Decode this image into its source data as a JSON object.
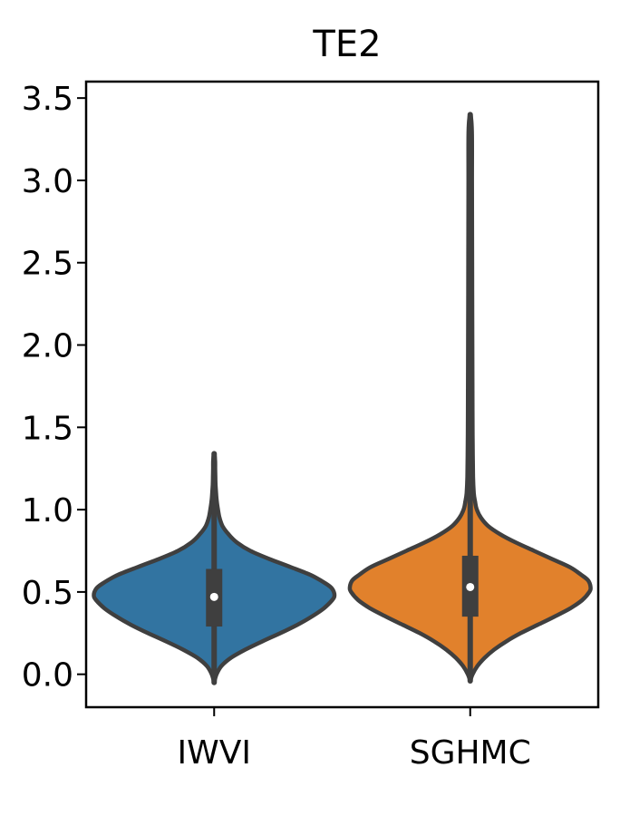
{
  "chart_data": {
    "type": "violin",
    "title": "TE2",
    "xlabel": "",
    "ylabel": "",
    "categories": [
      "IWVI",
      "SGHMC"
    ],
    "ylim": [
      -0.2,
      3.6
    ],
    "yticks": [
      0.0,
      0.5,
      1.0,
      1.5,
      2.0,
      2.5,
      3.0,
      3.5
    ],
    "ytick_labels": [
      "0.0",
      "0.5",
      "1.0",
      "1.5",
      "2.0",
      "2.5",
      "3.0",
      "3.5"
    ],
    "grid": false,
    "colors": {
      "IWVI": "#3274a1",
      "SGHMC": "#e1812c",
      "outline": "#3f3f3f",
      "median": "#ffffff"
    },
    "series": [
      {
        "category": "IWVI",
        "min": -0.05,
        "q1": 0.29,
        "median": 0.47,
        "q3": 0.64,
        "max": 1.34,
        "density": [
          [
            -0.05,
            0.0
          ],
          [
            0.0,
            0.02
          ],
          [
            0.05,
            0.06
          ],
          [
            0.1,
            0.14
          ],
          [
            0.15,
            0.26
          ],
          [
            0.2,
            0.4
          ],
          [
            0.25,
            0.55
          ],
          [
            0.3,
            0.69
          ],
          [
            0.35,
            0.81
          ],
          [
            0.4,
            0.91
          ],
          [
            0.45,
            0.98
          ],
          [
            0.48,
            1.0
          ],
          [
            0.52,
            0.98
          ],
          [
            0.55,
            0.93
          ],
          [
            0.6,
            0.81
          ],
          [
            0.65,
            0.64
          ],
          [
            0.7,
            0.46
          ],
          [
            0.75,
            0.3
          ],
          [
            0.8,
            0.19
          ],
          [
            0.85,
            0.12
          ],
          [
            0.9,
            0.07
          ],
          [
            0.95,
            0.045
          ],
          [
            1.0,
            0.032
          ],
          [
            1.05,
            0.022
          ],
          [
            1.1,
            0.016
          ],
          [
            1.15,
            0.012
          ],
          [
            1.2,
            0.01
          ],
          [
            1.25,
            0.009
          ],
          [
            1.3,
            0.008
          ],
          [
            1.34,
            0.0
          ]
        ]
      },
      {
        "category": "SGHMC",
        "min": -0.04,
        "q1": 0.35,
        "median": 0.53,
        "q3": 0.72,
        "max": 3.4,
        "density": [
          [
            -0.04,
            0.0
          ],
          [
            0.0,
            0.02
          ],
          [
            0.05,
            0.06
          ],
          [
            0.1,
            0.12
          ],
          [
            0.15,
            0.2
          ],
          [
            0.2,
            0.3
          ],
          [
            0.25,
            0.42
          ],
          [
            0.3,
            0.56
          ],
          [
            0.35,
            0.7
          ],
          [
            0.4,
            0.83
          ],
          [
            0.45,
            0.93
          ],
          [
            0.5,
            0.99
          ],
          [
            0.53,
            1.0
          ],
          [
            0.57,
            0.98
          ],
          [
            0.6,
            0.93
          ],
          [
            0.65,
            0.83
          ],
          [
            0.7,
            0.68
          ],
          [
            0.75,
            0.53
          ],
          [
            0.8,
            0.38
          ],
          [
            0.85,
            0.25
          ],
          [
            0.9,
            0.15
          ],
          [
            0.95,
            0.09
          ],
          [
            1.0,
            0.055
          ],
          [
            1.05,
            0.04
          ],
          [
            1.1,
            0.03
          ],
          [
            1.2,
            0.024
          ],
          [
            1.4,
            0.021
          ],
          [
            1.6,
            0.019
          ],
          [
            2.0,
            0.018
          ],
          [
            2.5,
            0.016
          ],
          [
            3.0,
            0.015
          ],
          [
            3.3,
            0.014
          ],
          [
            3.4,
            0.0
          ]
        ]
      }
    ]
  }
}
